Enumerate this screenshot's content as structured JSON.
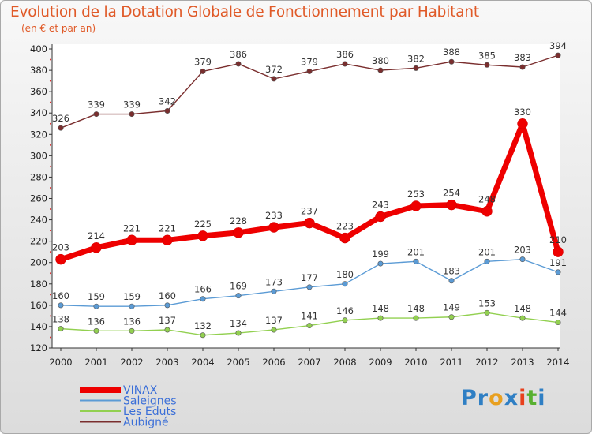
{
  "header": {
    "title": "Evolution de la Dotation Globale de Fonctionnement par Habitant",
    "subtitle": "(en € et par an)"
  },
  "logo": {
    "text": "Proxiti"
  },
  "chart_data": {
    "type": "line",
    "x": [
      "2000",
      "2001",
      "2002",
      "2003",
      "2004",
      "2005",
      "2006",
      "2007",
      "2008",
      "2009",
      "2010",
      "2011",
      "2012",
      "2013",
      "2014"
    ],
    "ylim": [
      120,
      400
    ],
    "yticks": [
      120,
      140,
      160,
      180,
      200,
      220,
      240,
      260,
      280,
      300,
      320,
      340,
      360,
      380,
      400
    ],
    "grid": false,
    "legend_position": "bottom-left",
    "series": [
      {
        "name": "Aubigné",
        "color": "#7a2e2e",
        "values": [
          326,
          339,
          339,
          342,
          379,
          386,
          372,
          379,
          386,
          380,
          382,
          388,
          385,
          383,
          394
        ]
      },
      {
        "name": "VINAX",
        "color": "#ee0000",
        "values": [
          203,
          214,
          221,
          221,
          225,
          228,
          233,
          237,
          223,
          243,
          253,
          254,
          248,
          330,
          210
        ]
      },
      {
        "name": "Saleignes",
        "color": "#5b9bd5",
        "values": [
          160,
          159,
          159,
          160,
          166,
          169,
          173,
          177,
          180,
          199,
          201,
          183,
          201,
          203,
          191
        ]
      },
      {
        "name": "Les Eduts",
        "color": "#92d050",
        "values": [
          138,
          136,
          136,
          137,
          132,
          134,
          137,
          141,
          146,
          148,
          148,
          149,
          153,
          148,
          144
        ]
      }
    ],
    "legend": [
      "VINAX",
      "Saleignes",
      "Les Eduts",
      "Aubigné"
    ]
  }
}
